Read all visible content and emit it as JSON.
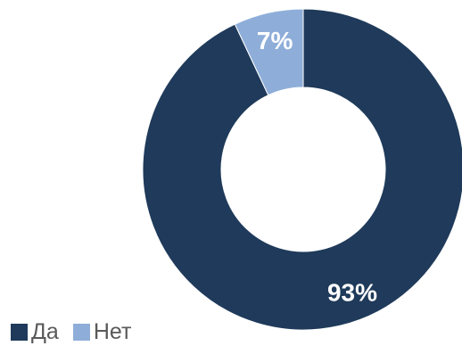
{
  "chart_data": {
    "type": "pie",
    "variant": "donut",
    "categories": [
      "Да",
      "Нет"
    ],
    "values": [
      93,
      7
    ],
    "data_labels": [
      "93%",
      "7%"
    ],
    "colors": [
      "#1f3a5a",
      "#8eaed9"
    ],
    "label_color": "#ffffff",
    "legend": {
      "placement": "bottom-left",
      "entries": [
        "Да",
        "Нет"
      ]
    }
  }
}
